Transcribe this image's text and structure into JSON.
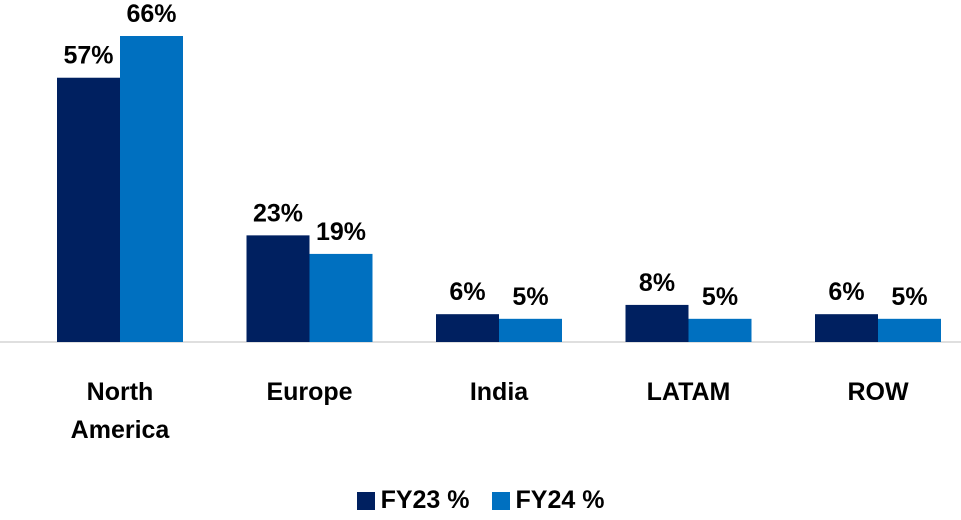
{
  "chart_data": {
    "type": "bar",
    "categories": [
      "North America",
      "Europe",
      "India",
      "LATAM",
      "ROW"
    ],
    "series": [
      {
        "name": "FY23 %",
        "color": "#002060",
        "values": [
          57,
          23,
          6,
          8,
          6
        ],
        "value_labels": [
          "57%",
          "23%",
          "6%",
          "8%",
          "6%"
        ]
      },
      {
        "name": "FY24 %",
        "color": "#0070c0",
        "values": [
          66,
          19,
          5,
          5,
          5
        ],
        "value_labels": [
          "66%",
          "19%",
          "5%",
          "5%",
          "5%"
        ]
      }
    ]
  }
}
